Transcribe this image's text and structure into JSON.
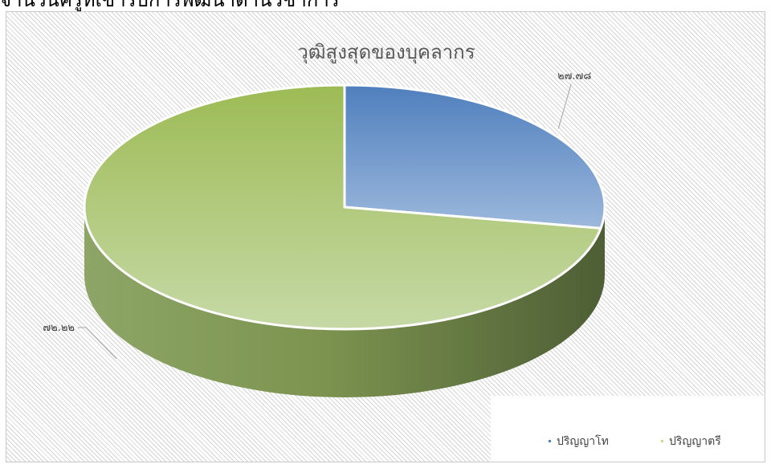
{
  "heading": "จำนวนครูที่เข้ารับการพัฒนาด้านวิชาการ",
  "chart_data": {
    "type": "pie",
    "title": "วุฒิสูงสุดของบุคลากร",
    "three_d": true,
    "legend_position": "bottom-right",
    "slices": [
      {
        "label": "ปริญญาโท",
        "value": 27.78,
        "value_label": "๒๗.๗๘",
        "color": "#4f81bd"
      },
      {
        "label": "ปริญญาตรี",
        "value": 72.22,
        "value_label": "๗๒.๒๒",
        "color": "#9bbb59"
      }
    ]
  }
}
